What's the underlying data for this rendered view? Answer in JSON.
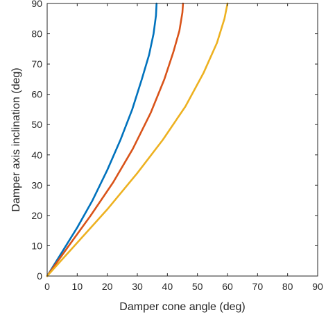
{
  "chart_data": {
    "type": "line",
    "xlabel": "Damper cone angle (deg)",
    "ylabel": "Damper axis inclination (deg)",
    "xlim": [
      0,
      90
    ],
    "ylim": [
      0,
      90
    ],
    "xticks": [
      0,
      10,
      20,
      30,
      40,
      50,
      60,
      70,
      80,
      90
    ],
    "yticks": [
      0,
      10,
      20,
      30,
      40,
      50,
      60,
      70,
      80,
      90
    ],
    "grid": false,
    "box": true,
    "series": [
      {
        "color": "#0072BD",
        "x": [
          0,
          5.0,
          10.0,
          15.1,
          20.0,
          24.4,
          28.3,
          31.5,
          33.9,
          35.4,
          36.2,
          36.4
        ],
        "y": [
          0,
          8,
          16,
          25,
          35,
          45,
          55,
          65,
          73,
          80,
          86,
          90
        ]
      },
      {
        "color": "#D95319",
        "x": [
          0,
          7.2,
          14.5,
          22.0,
          28.5,
          34.5,
          39.0,
          42.0,
          44.0,
          45.0,
          45.2
        ],
        "y": [
          0,
          10,
          20,
          31,
          42,
          54,
          65,
          74,
          81,
          87,
          90
        ]
      },
      {
        "color": "#EDB120",
        "x": [
          0,
          10.0,
          20.0,
          30.0,
          38.5,
          46.0,
          52.0,
          56.5,
          59.0,
          60.0
        ],
        "y": [
          0,
          11,
          22,
          34,
          45,
          56,
          67,
          77,
          85,
          90
        ]
      }
    ]
  }
}
